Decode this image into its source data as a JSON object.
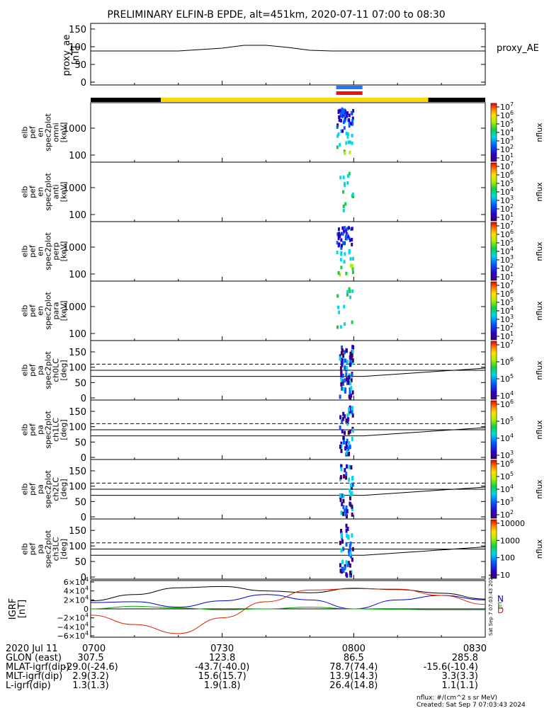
{
  "title": "PRELIMINARY ELFIN-B EPDE, alt=451km, 2020-07-11 07:00 to 08:30",
  "ae_panel": {
    "ylabel_lines": [
      "proxy_ae",
      "[nT]"
    ],
    "yticks": [
      "150",
      "100",
      "50",
      "0"
    ],
    "legend": "proxy_AE",
    "ylim": [
      0,
      150
    ]
  },
  "orbit_bar": {
    "colors": {
      "dark": "#000000",
      "sunlit": "#ffd800"
    }
  },
  "sci_zone_bars": {
    "colors": [
      "#1e78ff",
      "#ee1111"
    ]
  },
  "panels": [
    {
      "ylabel_lines": [
        "elb",
        "pef",
        "en",
        "spec2plot",
        "omni",
        "[keV]"
      ],
      "yticks": [
        "1000",
        "100"
      ],
      "cbar_label": "nflux",
      "cbar_ticks": [
        "10^7",
        "10^6",
        "10^5",
        "10^4",
        "10^3",
        "10^2",
        "10^1"
      ]
    },
    {
      "ylabel_lines": [
        "elb",
        "pef",
        "en",
        "spec2plot",
        "anti",
        "[keV]"
      ],
      "yticks": [
        "1000",
        "100"
      ],
      "cbar_label": "nflux",
      "cbar_ticks": [
        "10^7",
        "10^6",
        "10^5",
        "10^4",
        "10^3",
        "10^2",
        "10^1"
      ]
    },
    {
      "ylabel_lines": [
        "elb",
        "pef",
        "en",
        "spec2plot",
        "perp",
        "[keV]"
      ],
      "yticks": [
        "1000",
        "100"
      ],
      "cbar_label": "nflux",
      "cbar_ticks": [
        "10^7",
        "10^6",
        "10^5",
        "10^4",
        "10^3",
        "10^2",
        "10^1"
      ]
    },
    {
      "ylabel_lines": [
        "elb",
        "pef",
        "en",
        "spec2plot",
        "para",
        "[keV]"
      ],
      "yticks": [
        "1000",
        "100"
      ],
      "cbar_label": "nflux",
      "cbar_ticks": [
        "10^7",
        "10^6",
        "10^5",
        "10^4",
        "10^3",
        "10^2",
        "10^1"
      ]
    },
    {
      "ylabel_lines": [
        "elb",
        "pef",
        "pa",
        "spec2plot",
        "ch0LC",
        "[deg]"
      ],
      "yticks": [
        "150",
        "100",
        "50",
        "0"
      ],
      "cbar_label": "nflux",
      "cbar_ticks": [
        "10^7",
        "10^6",
        "10^5",
        "10^4"
      ]
    },
    {
      "ylabel_lines": [
        "elb",
        "pef",
        "pa",
        "spec2plot",
        "ch1LC",
        "[deg]"
      ],
      "yticks": [
        "150",
        "100",
        "50",
        "0"
      ],
      "cbar_label": "nflux",
      "cbar_ticks": [
        "10^6",
        "10^5",
        "10^4",
        "10^3"
      ]
    },
    {
      "ylabel_lines": [
        "elb",
        "pef",
        "pa",
        "spec2plot",
        "ch2LC",
        "[deg]"
      ],
      "yticks": [
        "150",
        "100",
        "50",
        "0"
      ],
      "cbar_label": "nflux",
      "cbar_ticks": [
        "10^6",
        "10^5",
        "10^4",
        "10^3",
        "10^2"
      ]
    },
    {
      "ylabel_lines": [
        "elb",
        "pef",
        "pa",
        "spec2plot",
        "ch3LC",
        "[deg]"
      ],
      "yticks": [
        "150",
        "100",
        "50",
        "0"
      ],
      "cbar_label": "nflux",
      "cbar_ticks": [
        "10000",
        "1000",
        "100",
        "10"
      ]
    }
  ],
  "igrf_panel": {
    "ylabel_lines": [
      "IGRF",
      "[nT]"
    ],
    "yticks": [
      "6×10^4",
      "4×10^4",
      "2×10^4",
      "0",
      "−2×10^4",
      "−4×10^4",
      "−6×10^4"
    ],
    "legend": [
      "N",
      "E",
      "D"
    ],
    "legend_colors": [
      "#0000cc",
      "#00aa00",
      "#dd2200"
    ],
    "stamp": "Sat Sep  7 07:03:43 2024"
  },
  "footer": {
    "rows": [
      [
        "2020 Jul 11",
        "0700",
        "0730",
        "0800",
        "0830"
      ],
      [
        "GLON (east)",
        "307.5",
        "123.8",
        "86.5",
        "285.8"
      ],
      [
        "MLAT-igrf(dip)",
        "-29.0(-24.6)",
        "-43.7(-40.0)",
        "78.7(74.4)",
        "-15.6(-10.4)"
      ],
      [
        "MLT-igrf(dip)",
        "2.9(3.2)",
        "15.6(15.7)",
        "13.9(14.3)",
        "3.3(3.3)"
      ],
      [
        "L-igrf(dip)",
        "1.3(1.3)",
        "1.9(1.8)",
        "26.4(14.8)",
        "1.1(1.1)"
      ]
    ],
    "units_note": "nflux: #/(cm^2 s sr MeV)",
    "created": "Created: Sat Sep  7 07:03:43 2024"
  },
  "chart_data": {
    "type": "heatmap",
    "x_range": [
      "07:00",
      "08:30"
    ],
    "ae": {
      "name": "proxy_AE",
      "x": [
        "07:00",
        "07:10",
        "07:20",
        "07:25",
        "07:30",
        "07:35",
        "07:40",
        "07:45",
        "07:50",
        "07:55",
        "08:00",
        "08:10",
        "08:20",
        "08:30"
      ],
      "values": [
        88,
        88,
        88,
        92,
        96,
        104,
        104,
        98,
        90,
        88,
        88,
        88,
        88,
        88
      ]
    },
    "orbit_bar": [
      {
        "start": "07:00",
        "end": "07:16",
        "state": "dark"
      },
      {
        "start": "07:16",
        "end": "08:17",
        "state": "sunlit"
      },
      {
        "start": "08:17",
        "end": "08:30",
        "state": "dark"
      }
    ],
    "science_zone": {
      "start": "07:56",
      "end": "08:02"
    },
    "spectrograms_time": {
      "start": "07:56",
      "end": "08:01"
    },
    "igrf": {
      "x": [
        "07:00",
        "07:10",
        "07:20",
        "07:30",
        "07:40",
        "07:50",
        "08:00",
        "08:10",
        "08:20",
        "08:30"
      ],
      "series": [
        {
          "name": "total",
          "values": [
            18000,
            32000,
            47000,
            50000,
            40000,
            36000,
            46000,
            43000,
            35000,
            22000
          ]
        },
        {
          "name": "N",
          "values": [
            14000,
            16000,
            4000,
            18000,
            32000,
            20000,
            0,
            20000,
            30000,
            20000
          ]
        },
        {
          "name": "E",
          "values": [
            0,
            6000,
            2000,
            -2000,
            0,
            4000,
            0,
            -1000,
            -2000,
            -2000
          ]
        },
        {
          "name": "D",
          "values": [
            -14000,
            -35000,
            -55000,
            -20000,
            16000,
            42000,
            45000,
            44000,
            30000,
            10000
          ]
        }
      ]
    },
    "reference_lines_deg": {
      "dashed": 110,
      "solid": [
        90,
        70
      ]
    }
  }
}
